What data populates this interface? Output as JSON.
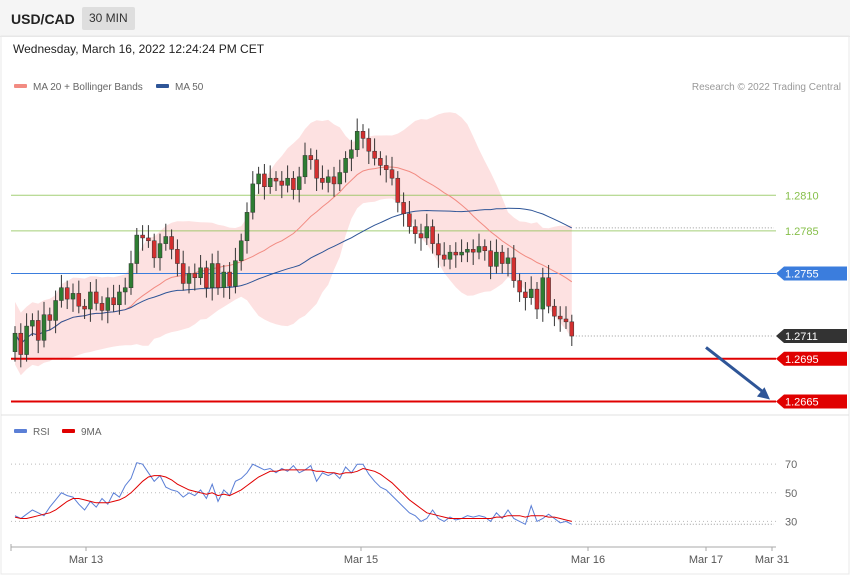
{
  "header": {
    "symbol": "USD/CAD",
    "timeframe": "30 MIN"
  },
  "datetime": "Wednesday, March 16, 2022 12:24:24 PM CET",
  "credit": "Research © 2022 Trading Central",
  "legend": {
    "ma20": {
      "label": "MA 20 + Bollinger Bands",
      "color": "#f28b82"
    },
    "ma50": {
      "label": "MA 50",
      "color": "#2e5597"
    },
    "rsi": {
      "label": "RSI",
      "color": "#5b7fd6"
    },
    "rsi_ma": {
      "label": "9MA",
      "color": "#e00000"
    }
  },
  "chart_data": {
    "type": "candlestick",
    "y_range": [
      1.2659,
      1.2877
    ],
    "price_levels": [
      {
        "value": 1.281,
        "label": "1.2810",
        "kind": "resistance",
        "color": "#86bf4a"
      },
      {
        "value": 1.2785,
        "label": "1.2785",
        "kind": "resistance",
        "color": "#86bf4a"
      },
      {
        "value": 1.2755,
        "label": "1.2755",
        "kind": "pivot",
        "color": "#3b7ddd"
      },
      {
        "value": 1.2695,
        "label": "1.2695",
        "kind": "support",
        "color": "#e00000"
      },
      {
        "value": 1.2665,
        "label": "1.2665",
        "kind": "support",
        "color": "#e00000"
      }
    ],
    "last_price": {
      "value": 1.2711,
      "label": "1.2711",
      "color": "#333333"
    },
    "forecast_arrow": {
      "from": 1.2703,
      "to": 1.2665,
      "color": "#2e5597"
    },
    "x_ticks": [
      "Mar 13",
      "Mar 15",
      "Mar 16",
      "Mar 17",
      "Mar 31"
    ],
    "candles": [
      [
        1.27,
        1.2713
      ],
      [
        1.2713,
        1.2698
      ],
      [
        1.2698,
        1.2718
      ],
      [
        1.2718,
        1.2722
      ],
      [
        1.2722,
        1.2708
      ],
      [
        1.2708,
        1.2726
      ],
      [
        1.2726,
        1.2722
      ],
      [
        1.2722,
        1.2736
      ],
      [
        1.2736,
        1.2745
      ],
      [
        1.2745,
        1.2737
      ],
      [
        1.2737,
        1.2741
      ],
      [
        1.2741,
        1.2732
      ],
      [
        1.2732,
        1.273
      ],
      [
        1.273,
        1.2742
      ],
      [
        1.2742,
        1.2734
      ],
      [
        1.2734,
        1.2729
      ],
      [
        1.2729,
        1.2738
      ],
      [
        1.2738,
        1.2733
      ],
      [
        1.2733,
        1.2742
      ],
      [
        1.2742,
        1.2745
      ],
      [
        1.2745,
        1.2762
      ],
      [
        1.2762,
        1.2782
      ],
      [
        1.2782,
        1.278
      ],
      [
        1.278,
        1.2778
      ],
      [
        1.2778,
        1.2766
      ],
      [
        1.2766,
        1.2776
      ],
      [
        1.2776,
        1.2781
      ],
      [
        1.2781,
        1.2772
      ],
      [
        1.2772,
        1.2762
      ],
      [
        1.2762,
        1.2748
      ],
      [
        1.2748,
        1.2755
      ],
      [
        1.2755,
        1.2752
      ],
      [
        1.2752,
        1.2759
      ],
      [
        1.2759,
        1.2745
      ],
      [
        1.2745,
        1.2762
      ],
      [
        1.2762,
        1.2745
      ],
      [
        1.2745,
        1.2756
      ],
      [
        1.2756,
        1.2746
      ],
      [
        1.2746,
        1.2764
      ],
      [
        1.2764,
        1.2778
      ],
      [
        1.2778,
        1.2798
      ],
      [
        1.2798,
        1.2818
      ],
      [
        1.2818,
        1.2825
      ],
      [
        1.2825,
        1.2816
      ],
      [
        1.2816,
        1.2822
      ],
      [
        1.2822,
        1.282
      ],
      [
        1.282,
        1.2817
      ],
      [
        1.2817,
        1.2822
      ],
      [
        1.2822,
        1.2814
      ],
      [
        1.2814,
        1.2823
      ],
      [
        1.2823,
        1.2838
      ],
      [
        1.2838,
        1.2835
      ],
      [
        1.2835,
        1.2822
      ],
      [
        1.2822,
        1.2819
      ],
      [
        1.2819,
        1.2823
      ],
      [
        1.2823,
        1.2818
      ],
      [
        1.2818,
        1.2826
      ],
      [
        1.2826,
        1.2836
      ],
      [
        1.2836,
        1.2842
      ],
      [
        1.2842,
        1.2855
      ],
      [
        1.2855,
        1.285
      ],
      [
        1.285,
        1.2841
      ],
      [
        1.2841,
        1.2836
      ],
      [
        1.2836,
        1.2831
      ],
      [
        1.2831,
        1.2828
      ],
      [
        1.2828,
        1.2822
      ],
      [
        1.2822,
        1.2805
      ],
      [
        1.2805,
        1.2797
      ],
      [
        1.2797,
        1.2788
      ],
      [
        1.2788,
        1.2783
      ],
      [
        1.2783,
        1.278
      ],
      [
        1.278,
        1.2788
      ],
      [
        1.2788,
        1.2776
      ],
      [
        1.2776,
        1.2768
      ],
      [
        1.2768,
        1.2765
      ],
      [
        1.2765,
        1.277
      ],
      [
        1.277,
        1.2768
      ],
      [
        1.2768,
        1.277
      ],
      [
        1.277,
        1.2772
      ],
      [
        1.2772,
        1.277
      ],
      [
        1.277,
        1.2774
      ],
      [
        1.2774,
        1.2771
      ],
      [
        1.2771,
        1.276
      ],
      [
        1.276,
        1.277
      ],
      [
        1.277,
        1.2762
      ],
      [
        1.2762,
        1.2766
      ],
      [
        1.2766,
        1.275
      ],
      [
        1.275,
        1.2742
      ],
      [
        1.2742,
        1.2738
      ],
      [
        1.2738,
        1.2744
      ],
      [
        1.2744,
        1.273
      ],
      [
        1.273,
        1.2752
      ],
      [
        1.2752,
        1.2732
      ],
      [
        1.2732,
        1.2725
      ],
      [
        1.2725,
        1.2723
      ],
      [
        1.2723,
        1.2721
      ],
      [
        1.2721,
        1.2711
      ]
    ],
    "rsi": {
      "levels": [
        70,
        50,
        30
      ],
      "y_range": [
        17,
        82
      ],
      "rsi": [
        34,
        32,
        35,
        38,
        36,
        34,
        40,
        45,
        50,
        48,
        47,
        42,
        38,
        44,
        40,
        46,
        42,
        50,
        47,
        55,
        60,
        71,
        70,
        64,
        58,
        62,
        54,
        52,
        51,
        47,
        50,
        48,
        52,
        46,
        56,
        44,
        52,
        48,
        58,
        60,
        64,
        70,
        68,
        66,
        67,
        64,
        67,
        65,
        69,
        64,
        66,
        69,
        58,
        64,
        62,
        64,
        60,
        68,
        64,
        70,
        70,
        63,
        58,
        54,
        52,
        48,
        44,
        40,
        36,
        34,
        30,
        32,
        38,
        32,
        30,
        33,
        31,
        32,
        34,
        33,
        34,
        33,
        30,
        36,
        32,
        38,
        32,
        30,
        28,
        41,
        30,
        32,
        35,
        32,
        29,
        30,
        28
      ],
      "ma": [
        33,
        32,
        32,
        33,
        34,
        35,
        36,
        38,
        41,
        44,
        46,
        46,
        45,
        44,
        43,
        43,
        43,
        44,
        45,
        47,
        50,
        54,
        58,
        61,
        62,
        62,
        61,
        59,
        56,
        54,
        52,
        51,
        50,
        49,
        50,
        48,
        49,
        48,
        50,
        52,
        55,
        58,
        61,
        63,
        65,
        65,
        66,
        66,
        66,
        66,
        66,
        66,
        65,
        65,
        64,
        64,
        63,
        64,
        64,
        65,
        67,
        66,
        65,
        63,
        60,
        57,
        53,
        49,
        45,
        42,
        39,
        36,
        35,
        34,
        33,
        32,
        32,
        32,
        32,
        32,
        32,
        32,
        32,
        33,
        33,
        34,
        34,
        34,
        33,
        34,
        34,
        34,
        33,
        33,
        32,
        31,
        30
      ]
    }
  }
}
